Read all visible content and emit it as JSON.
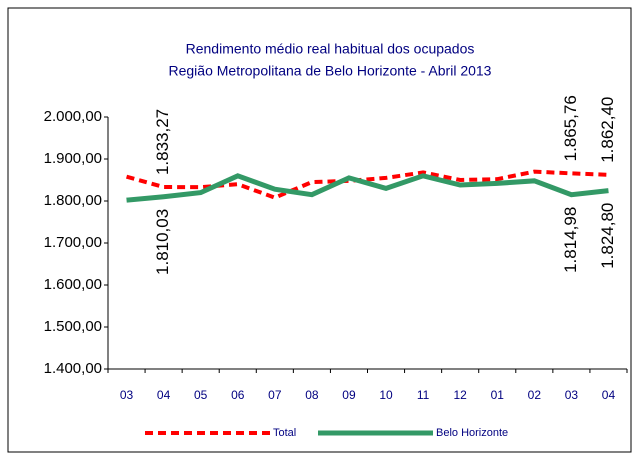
{
  "chart_data": {
    "type": "line",
    "title": "Rendimento médio real habitual dos ocupados",
    "subtitle": "Região Metropolitana de Belo Horizonte - Abril 2013",
    "categories": [
      "03",
      "04",
      "05",
      "06",
      "07",
      "08",
      "09",
      "10",
      "11",
      "12",
      "01",
      "02",
      "03",
      "04"
    ],
    "series": [
      {
        "name": "Total",
        "color": "#ff0000",
        "dashed": true,
        "values": [
          1858,
          1833.27,
          1833,
          1840,
          1808,
          1845,
          1848,
          1855,
          1868,
          1850,
          1852,
          1870,
          1865.76,
          1862.4
        ],
        "value_labels": [
          null,
          "1.833,27",
          null,
          null,
          null,
          null,
          null,
          null,
          null,
          null,
          null,
          null,
          "1.865,76",
          "1.862,40"
        ]
      },
      {
        "name": "Belo Horizonte",
        "color": "#339966",
        "dashed": false,
        "values": [
          1802,
          1810.03,
          1820,
          1860,
          1828,
          1815,
          1855,
          1830,
          1860,
          1838,
          1842,
          1848,
          1814.98,
          1824.8
        ],
        "value_labels": [
          null,
          "1.810,03",
          null,
          null,
          null,
          null,
          null,
          null,
          null,
          null,
          null,
          null,
          "1.814,98",
          "1.824,80"
        ]
      }
    ],
    "ylim": [
      1400,
      2000
    ],
    "yticks": [
      {
        "value": 1400,
        "label": "1.400,00"
      },
      {
        "value": 1500,
        "label": "1.500,00"
      },
      {
        "value": 1600,
        "label": "1.600,00"
      },
      {
        "value": 1700,
        "label": "1.700,00"
      },
      {
        "value": 1800,
        "label": "1.800,00"
      },
      {
        "value": 1900,
        "label": "1.900,00"
      },
      {
        "value": 2000,
        "label": "2.000,00"
      }
    ],
    "legend": "bottom"
  }
}
